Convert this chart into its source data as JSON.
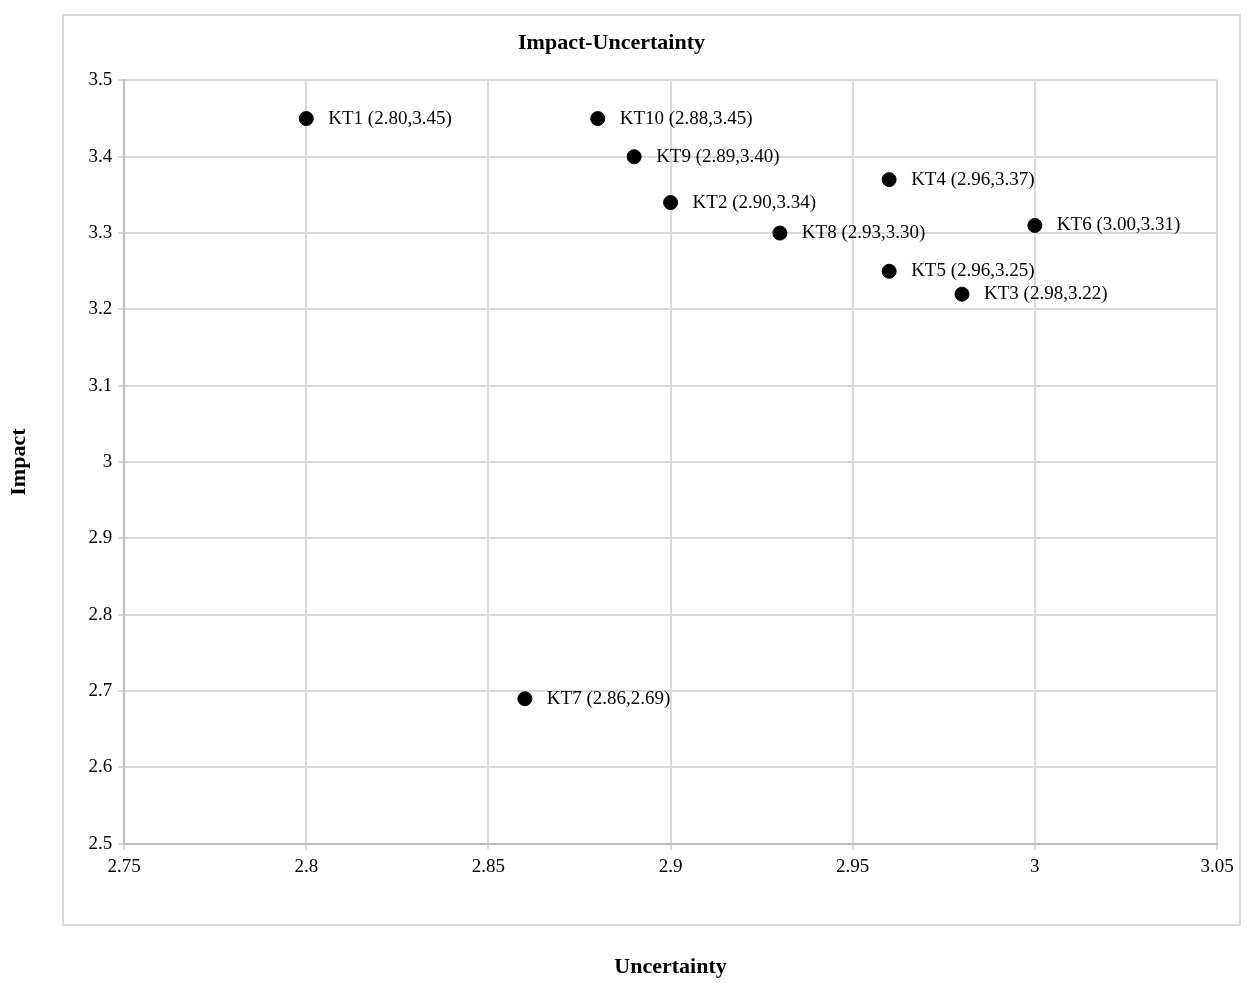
{
  "chart_data": {
    "type": "scatter",
    "title": "Impact-Uncertainty",
    "xlabel": "Uncertainty",
    "ylabel": "Impact",
    "x": [
      2.8,
      2.9,
      2.98,
      2.96,
      2.96,
      3.0,
      2.86,
      2.93,
      2.89,
      2.88
    ],
    "series": [
      {
        "color": "#000000",
        "values": [
          3.45,
          3.34,
          3.22,
          3.37,
          3.25,
          3.31,
          2.69,
          3.3,
          3.4,
          3.45
        ]
      }
    ],
    "xlim": [
      2.75,
      3.05
    ],
    "xticks": [
      2.75,
      2.8,
      2.85,
      2.9,
      2.95,
      3,
      3.05
    ],
    "ylim": [
      2.5,
      3.5
    ],
    "yticks": [
      2.5,
      2.6,
      2.7,
      2.8,
      2.9,
      3,
      3.1,
      3.2,
      3.3,
      3.4,
      3.5
    ],
    "grid": true,
    "marker": "circle",
    "annotations": [
      {
        "text": "KT1 (2.80,3.45)",
        "x": 2.8,
        "y": 3.45
      },
      {
        "text": "KT2 (2.90,3.34)",
        "x": 2.9,
        "y": 3.34
      },
      {
        "text": "KT3 (2.98,3.22)",
        "x": 2.98,
        "y": 3.22
      },
      {
        "text": "KT4 (2.96,3.37)",
        "x": 2.96,
        "y": 3.37
      },
      {
        "text": "KT5 (2.96,3.25)",
        "x": 2.96,
        "y": 3.25
      },
      {
        "text": "KT6 (3.00,3.31)",
        "x": 3.0,
        "y": 3.31
      },
      {
        "text": "KT7 (2.86,2.69)",
        "x": 2.86,
        "y": 2.69
      },
      {
        "text": "KT8 (2.93,3.30)",
        "x": 2.93,
        "y": 3.3
      },
      {
        "text": "KT9 (2.89,3.40)",
        "x": 2.89,
        "y": 3.4
      },
      {
        "text": "KT10 (2.88,3.45)",
        "x": 2.88,
        "y": 3.45
      }
    ]
  }
}
